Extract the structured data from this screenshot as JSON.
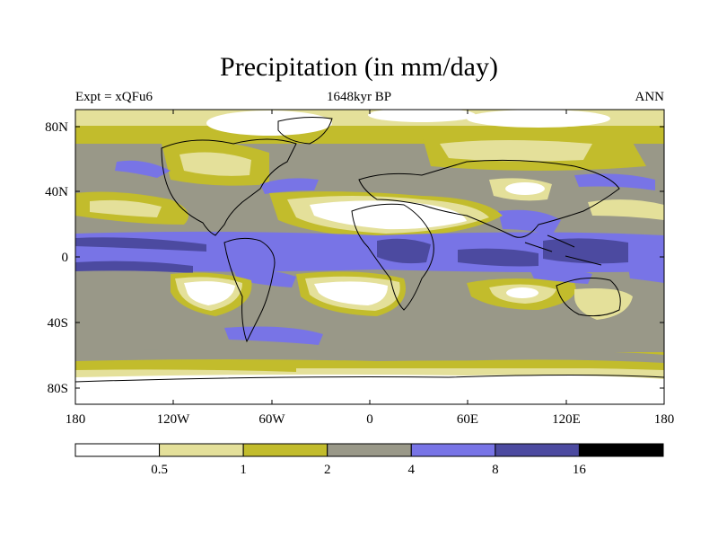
{
  "map": {
    "title": "Precipitation (in mm/day)",
    "subtitle": "1648kyr BP",
    "left_label": "Expt = xQFu6",
    "right_label": "ANN",
    "lon_ticks": [
      "180",
      "120W",
      "60W",
      "0",
      "60E",
      "120E",
      "180"
    ],
    "lat_ticks": [
      "80N",
      "40N",
      "0",
      "40S",
      "80S"
    ],
    "colorbar": {
      "colors": [
        "#ffffff",
        "#e4e09a",
        "#c2bc2c",
        "#999888",
        "#7874e6",
        "#4c4aa0",
        "#000000"
      ],
      "boundaries": [
        "0.5",
        "1",
        "2",
        "4",
        "8",
        "16"
      ]
    }
  }
}
